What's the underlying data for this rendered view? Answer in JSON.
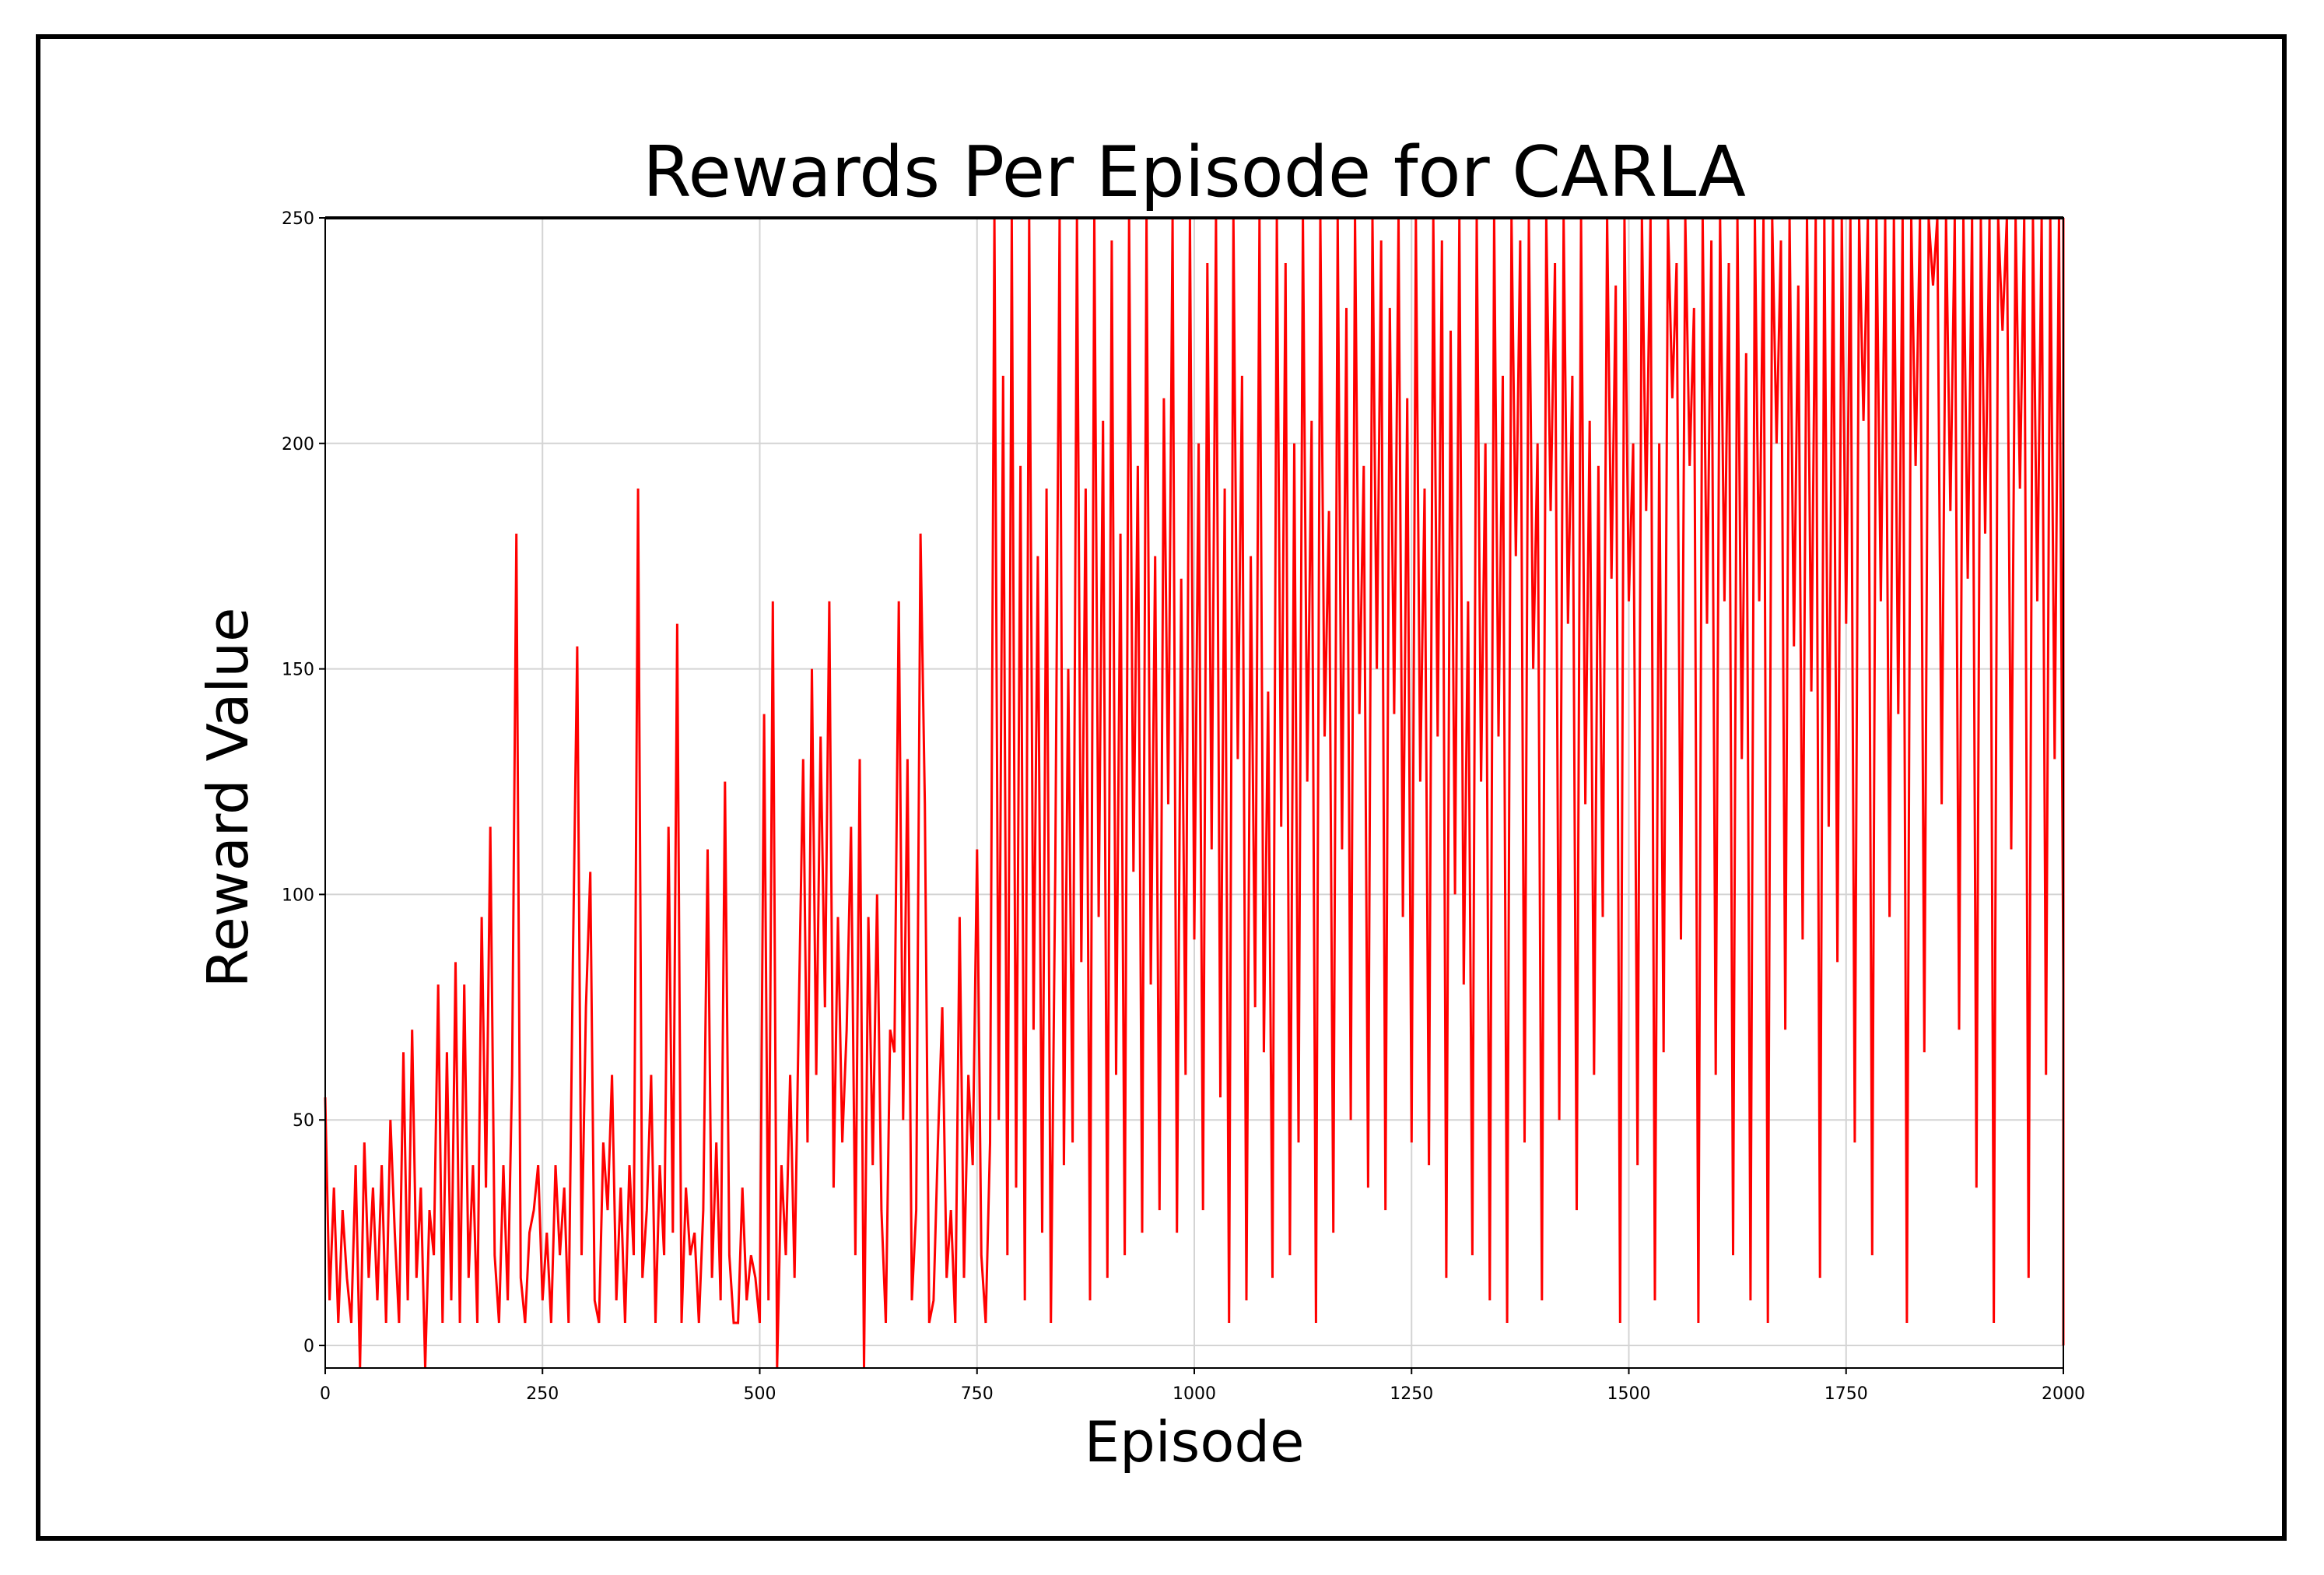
{
  "chart_data": {
    "type": "line",
    "title": "Rewards Per Episode for CARLA",
    "xlabel": "Episode",
    "ylabel": "Reward Value",
    "xlim": [
      0,
      2000
    ],
    "ylim": [
      -5,
      250
    ],
    "x_ticks": [
      "0",
      "250",
      "500",
      "750",
      "1000",
      "1250",
      "1500",
      "1750",
      "2000"
    ],
    "y_ticks": [
      "0",
      "50",
      "100",
      "150",
      "200",
      "250"
    ],
    "x_tick_values": [
      0,
      250,
      500,
      750,
      1000,
      1250,
      1500,
      1750,
      2000
    ],
    "y_tick_values": [
      0,
      50,
      100,
      150,
      200,
      250
    ],
    "grid": true,
    "line_color": "#ff0000",
    "series": [
      {
        "x_start": 0,
        "x_step": 5,
        "values": [
          55,
          10,
          35,
          5,
          30,
          15,
          5,
          40,
          -5,
          45,
          15,
          35,
          10,
          40,
          5,
          50,
          25,
          5,
          65,
          10,
          70,
          15,
          35,
          -5,
          30,
          20,
          80,
          5,
          65,
          10,
          85,
          5,
          80,
          15,
          40,
          5,
          95,
          35,
          115,
          20,
          5,
          40,
          10,
          60,
          180,
          15,
          5,
          25,
          30,
          40,
          10,
          25,
          5,
          40,
          20,
          35,
          5,
          85,
          155,
          20,
          75,
          105,
          10,
          5,
          45,
          30,
          60,
          10,
          35,
          5,
          40,
          20,
          190,
          15,
          30,
          60,
          5,
          40,
          20,
          115,
          25,
          160,
          5,
          35,
          20,
          25,
          5,
          30,
          110,
          15,
          45,
          10,
          125,
          20,
          5,
          5,
          35,
          10,
          20,
          15,
          5,
          140,
          10,
          165,
          -5,
          40,
          20,
          60,
          15,
          75,
          130,
          45,
          150,
          60,
          135,
          75,
          165,
          35,
          95,
          45,
          70,
          115,
          20,
          130,
          -5,
          95,
          40,
          100,
          30,
          5,
          70,
          65,
          165,
          50,
          130,
          10,
          30,
          180,
          120,
          5,
          10,
          45,
          75,
          15,
          30,
          5,
          95,
          15,
          60,
          40,
          110,
          20,
          5,
          45,
          250,
          50,
          215,
          20,
          250,
          35,
          195,
          10,
          250,
          70,
          175,
          25,
          190,
          5,
          105,
          250,
          40,
          150,
          45,
          250,
          85,
          190,
          10,
          250,
          95,
          205,
          15,
          245,
          60,
          180,
          20,
          250,
          105,
          195,
          25,
          250,
          80,
          175,
          30,
          210,
          120,
          250,
          25,
          170,
          60,
          250,
          90,
          200,
          30,
          240,
          110,
          250,
          55,
          190,
          5,
          250,
          130,
          215,
          10,
          175,
          75,
          250,
          65,
          145,
          15,
          250,
          115,
          240,
          20,
          200,
          45,
          250,
          125,
          205,
          5,
          250,
          135,
          185,
          25,
          250,
          110,
          230,
          50,
          250,
          140,
          195,
          35,
          250,
          150,
          245,
          30,
          230,
          140,
          250,
          95,
          210,
          45,
          250,
          125,
          190,
          40,
          250,
          135,
          245,
          15,
          225,
          100,
          250,
          80,
          165,
          20,
          250,
          125,
          200,
          10,
          250,
          135,
          215,
          5,
          250,
          175,
          245,
          45,
          250,
          150,
          200,
          10,
          250,
          185,
          240,
          50,
          250,
          160,
          215,
          30,
          250,
          120,
          205,
          60,
          195,
          95,
          250,
          170,
          235,
          5,
          250,
          165,
          200,
          40,
          250,
          185,
          250,
          10,
          200,
          65,
          250,
          210,
          240,
          90,
          250,
          195,
          230,
          5,
          250,
          160,
          245,
          60,
          250,
          165,
          240,
          20,
          250,
          130,
          220,
          10,
          250,
          165,
          250,
          5,
          250,
          200,
          245,
          70,
          250,
          155,
          235,
          90,
          250,
          145,
          250,
          15,
          250,
          115,
          250,
          85,
          250,
          160,
          250,
          45,
          250,
          205,
          250,
          20,
          250,
          165,
          250,
          95,
          250,
          140,
          250,
          5,
          250,
          195,
          250,
          65,
          250,
          235,
          250,
          120,
          250,
          185,
          250,
          70,
          250,
          170,
          250,
          35,
          250,
          180,
          250,
          5,
          250,
          225,
          250,
          110,
          250,
          190,
          250,
          15,
          250,
          165,
          250,
          60,
          250,
          130,
          250,
          80,
          250,
          155,
          250,
          5,
          250,
          160,
          250,
          105,
          250,
          195,
          250,
          15,
          250,
          175,
          250,
          60,
          250,
          145,
          250,
          110,
          250,
          250,
          30,
          250,
          250,
          100,
          250,
          190,
          250,
          250,
          15,
          250,
          250,
          140,
          250,
          185,
          250,
          250,
          50,
          250,
          250,
          210,
          250,
          250,
          100,
          250,
          170,
          250,
          250,
          10,
          250,
          250,
          220,
          250,
          250,
          180,
          250,
          250,
          15,
          250,
          250,
          100,
          250,
          250,
          45,
          250,
          250,
          95,
          250,
          250,
          155,
          250,
          250,
          50,
          250,
          250,
          120,
          250,
          250,
          35,
          250,
          250,
          15,
          250,
          250,
          100,
          250,
          250,
          165,
          250,
          250,
          5,
          250,
          250,
          190,
          250,
          250,
          105,
          250,
          250,
          50,
          250,
          250,
          130,
          250,
          250,
          140,
          250,
          250,
          95,
          250,
          250,
          40,
          250,
          250,
          250,
          180,
          250,
          250,
          250,
          130,
          250,
          250,
          250,
          85,
          250,
          250,
          250,
          10,
          250,
          250,
          250,
          155,
          250,
          250,
          250,
          145,
          250,
          250,
          250,
          35,
          250,
          250,
          250,
          165,
          250,
          250,
          250,
          250,
          95,
          250,
          250,
          250,
          60,
          250,
          250,
          250,
          110,
          250,
          250,
          250,
          250,
          55,
          250,
          250,
          250,
          250,
          20,
          250,
          250,
          250,
          250,
          110,
          250,
          250,
          250,
          250,
          250,
          55,
          250,
          250,
          250,
          250,
          45,
          250,
          250,
          250,
          250,
          250,
          5,
          250,
          250,
          250,
          250,
          250,
          195,
          250,
          250,
          250,
          250,
          250,
          95,
          250,
          250,
          250,
          250,
          250,
          100,
          250,
          250,
          250,
          250,
          250,
          250,
          15,
          250,
          250,
          250,
          250,
          250,
          250,
          130,
          250,
          250,
          250,
          250,
          250,
          250,
          250,
          105,
          250,
          250,
          250,
          250,
          250,
          250,
          250,
          15,
          250,
          250,
          250,
          250,
          250,
          250,
          250,
          250,
          15,
          250,
          250,
          250,
          250,
          250,
          250,
          250,
          250,
          0,
          250,
          250,
          250,
          250,
          250,
          250,
          250,
          60,
          250,
          250,
          250,
          250,
          250,
          250,
          5,
          250,
          250,
          250,
          250,
          250,
          90,
          250,
          250,
          250,
          250,
          85,
          250,
          250
        ]
      }
    ]
  }
}
